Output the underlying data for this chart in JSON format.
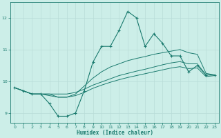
{
  "xlabel": "Humidex (Indice chaleur)",
  "bg_color": "#cceee8",
  "line_color": "#1a7a6e",
  "grid_color": "#b8dcd8",
  "xlim": [
    -0.5,
    23.5
  ],
  "ylim": [
    8.7,
    12.5
  ],
  "yticks": [
    9,
    10,
    11,
    12
  ],
  "xticks": [
    0,
    1,
    2,
    3,
    4,
    5,
    6,
    7,
    8,
    9,
    10,
    11,
    12,
    13,
    14,
    15,
    16,
    17,
    18,
    19,
    20,
    21,
    22,
    23
  ],
  "series_main": [
    9.8,
    9.7,
    9.6,
    9.6,
    9.3,
    8.9,
    8.9,
    9.0,
    9.7,
    10.6,
    11.1,
    11.1,
    11.6,
    12.2,
    12.0,
    11.1,
    11.5,
    11.2,
    10.8,
    10.8,
    10.3,
    10.5,
    10.2,
    10.2
  ],
  "series_trend": [
    [
      9.8,
      9.7,
      9.6,
      9.6,
      9.6,
      9.5,
      9.5,
      9.6,
      9.85,
      10.1,
      10.3,
      10.45,
      10.55,
      10.65,
      10.72,
      10.78,
      10.85,
      10.9,
      10.95,
      11.0,
      10.9,
      10.85,
      10.25,
      10.2
    ],
    [
      9.8,
      9.7,
      9.6,
      9.6,
      9.6,
      9.6,
      9.6,
      9.65,
      9.75,
      9.88,
      9.98,
      10.08,
      10.18,
      10.25,
      10.32,
      10.38,
      10.45,
      10.52,
      10.58,
      10.62,
      10.55,
      10.55,
      10.2,
      10.2
    ],
    [
      9.8,
      9.7,
      9.6,
      9.6,
      9.55,
      9.5,
      9.5,
      9.55,
      9.65,
      9.78,
      9.88,
      9.97,
      10.05,
      10.12,
      10.18,
      10.24,
      10.3,
      10.36,
      10.42,
      10.46,
      10.4,
      10.42,
      10.15,
      10.18
    ]
  ]
}
